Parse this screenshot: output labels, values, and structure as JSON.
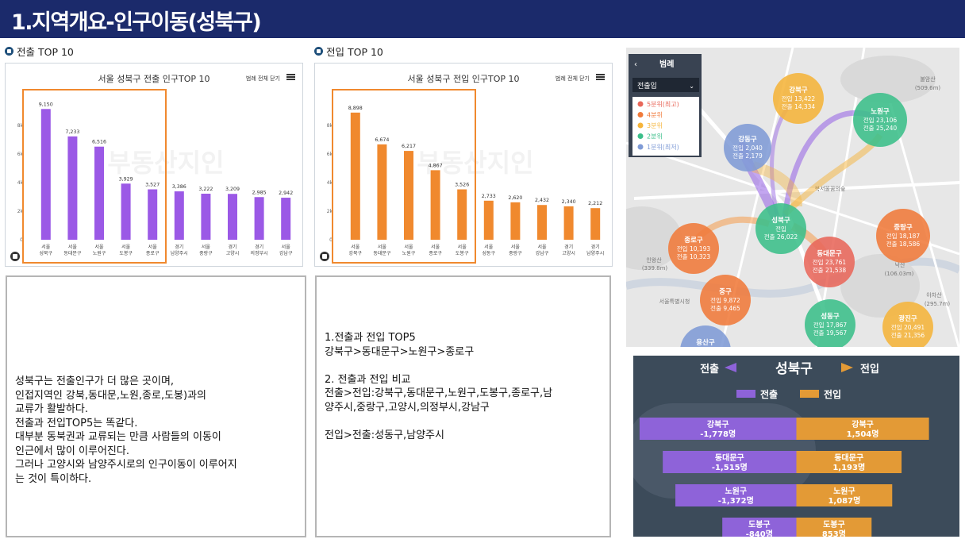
{
  "header": {
    "title": "1.지역개요-인구이동(성북구)"
  },
  "sections": {
    "out": "전출 TOP 10",
    "in": "전입 TOP 10"
  },
  "common": {
    "legend_toggle": "범례 전체 닫기",
    "watermark": "부동산지인"
  },
  "chart_out": {
    "type": "bar",
    "title": "서울 성북구 전출 인구TOP 10",
    "color": "#9b59e6",
    "categories": [
      [
        "서울",
        "성북구"
      ],
      [
        "서울",
        "동대문구"
      ],
      [
        "서울",
        "노원구"
      ],
      [
        "서울",
        "도봉구"
      ],
      [
        "서울",
        "종로구"
      ],
      [
        "경기",
        "남양주시"
      ],
      [
        "서울",
        "중랑구"
      ],
      [
        "경기",
        "고양시"
      ],
      [
        "경기",
        "의정부시"
      ],
      [
        "서울",
        "강남구"
      ]
    ],
    "values": [
      9150,
      7233,
      6516,
      3929,
      3527,
      3386,
      3222,
      3209,
      2985,
      2942
    ],
    "labels": [
      "9,150",
      "7,233",
      "6,516",
      "3,929",
      "3,527",
      "3,386",
      "3,222",
      "3,209",
      "2,985",
      "2,942"
    ],
    "ylim": [
      0,
      10000
    ],
    "yticks": [
      0,
      2000,
      4000,
      6000,
      8000
    ],
    "ytick_labels": [
      "0",
      "2k",
      "4k",
      "6k",
      "8k"
    ],
    "highlight_count": 5
  },
  "chart_in": {
    "type": "bar",
    "title": "서울 성북구 전입 인구TOP 10",
    "color": "#f0892e",
    "categories": [
      [
        "서울",
        "강북구"
      ],
      [
        "서울",
        "동대문구"
      ],
      [
        "서울",
        "노원구"
      ],
      [
        "서울",
        "종로구"
      ],
      [
        "서울",
        "도봉구"
      ],
      [
        "서울",
        "성동구"
      ],
      [
        "서울",
        "중랑구"
      ],
      [
        "서울",
        "강남구"
      ],
      [
        "경기",
        "고양시"
      ],
      [
        "경기",
        "남양주시"
      ]
    ],
    "values": [
      8898,
      6674,
      6217,
      4867,
      3526,
      2733,
      2620,
      2432,
      2340,
      2212
    ],
    "labels": [
      "8,898",
      "6,674",
      "6,217",
      "4,867",
      "3,526",
      "2,733",
      "2,620",
      "2,432",
      "2,340",
      "2,212"
    ],
    "ylim": [
      0,
      10000
    ],
    "yticks": [
      0,
      2000,
      4000,
      6000,
      8000
    ],
    "ytick_labels": [
      "0",
      "2k",
      "4k",
      "6k",
      "8k"
    ],
    "highlight_count": 5
  },
  "text_left": [
    "성북구는 전출인구가 더 많은 곳이며,",
    "인접지역인 강북,동대문,노원,종로,도봉)과의",
    "교류가 활발하다.",
    "전출과 전입TOP5는 똑같다.",
    "대부분 동북권과 교류되는 만큼 사람들의 이동이",
    "인근에서 많이 이루어진다.",
    "그러나 고양시와 남양주시로의 인구이동이 이루어지",
    "는 것이 특이하다."
  ],
  "text_right": [
    "1.전출과 전입 TOP5",
    "강북구>동대문구>노원구>종로구",
    "",
    "2. 전출과 전입 비교",
    "전출>전입:강북구,동대문구,노원구,도봉구,종로구,남",
    "양주시,중랑구,고양시,의정부시,강남구",
    "",
    "전입>전출:성동구,남양주시"
  ],
  "map": {
    "legend_title": "범례",
    "select": "전출입",
    "legend_items": [
      {
        "label": "5분위(최고)",
        "color": "#e8675a"
      },
      {
        "label": "4분위",
        "color": "#f07a3a"
      },
      {
        "label": "3분위",
        "color": "#f5b43a"
      },
      {
        "label": "2분위",
        "color": "#3bbf8a"
      },
      {
        "label": "1분위(최저)",
        "color": "#7f9bd6"
      }
    ],
    "place_labels": [
      "북서울꿈의숲",
      "불암산",
      "(509.6m)",
      "인왕산",
      "(339.8m)",
      "낙산",
      "(106.03m)",
      "아차산",
      "(295.7m)",
      "서울특별시청"
    ],
    "bubbles": [
      {
        "name": "강북구",
        "l1": "전입 13,422",
        "l2": "전출 14,334",
        "color": "#f5b43a"
      },
      {
        "name": "노원구",
        "l1": "전입 23,106",
        "l2": "전출 25,240",
        "color": "#3bbf8a"
      },
      {
        "name": "강동구",
        "l1": "전입 2,040",
        "l2": "전출 2,179",
        "color": "#7f9bd6"
      },
      {
        "name": "성북구",
        "l1": "전입",
        "l2": "전출 26,022",
        "color": "#3bbf8a"
      },
      {
        "name": "종로구",
        "l1": "전입 10,193",
        "l2": "전출 10,323",
        "color": "#f07a3a"
      },
      {
        "name": "동대문구",
        "l1": "전입 23,761",
        "l2": "전출 21,538",
        "color": "#e8675a"
      },
      {
        "name": "중랑구",
        "l1": "전입 18,187",
        "l2": "전출 18,586",
        "color": "#f07a3a"
      },
      {
        "name": "중구",
        "l1": "전입 9,872",
        "l2": "전출 9,465",
        "color": "#f07a3a"
      },
      {
        "name": "성동구",
        "l1": "전입 17,867",
        "l2": "전출 19,567",
        "color": "#3bbf8a"
      },
      {
        "name": "광진구",
        "l1": "전입 20,491",
        "l2": "전출 21,356",
        "color": "#f5b43a"
      },
      {
        "name": "용산구",
        "l1": "",
        "l2": "",
        "color": "#7f9bd6"
      }
    ]
  },
  "flow": {
    "title": "성북구",
    "out_label": "전출",
    "in_label": "전입",
    "legend_out": "전출",
    "legend_in": "전입",
    "out_color": "#8e63d9",
    "in_color": "#e39a36",
    "rows": [
      {
        "name": "강북구",
        "out": -1778,
        "in": 1504,
        "out_text": "-1,778명",
        "in_text": "1,504명"
      },
      {
        "name": "동대문구",
        "out": -1515,
        "in": 1193,
        "out_text": "-1,515명",
        "in_text": "1,193명"
      },
      {
        "name": "노원구",
        "out": -1372,
        "in": 1087,
        "out_text": "-1,372명",
        "in_text": "1,087명"
      },
      {
        "name": "도봉구",
        "out": -840,
        "in": 853,
        "out_text": "-840명",
        "in_text": "853명"
      }
    ]
  }
}
